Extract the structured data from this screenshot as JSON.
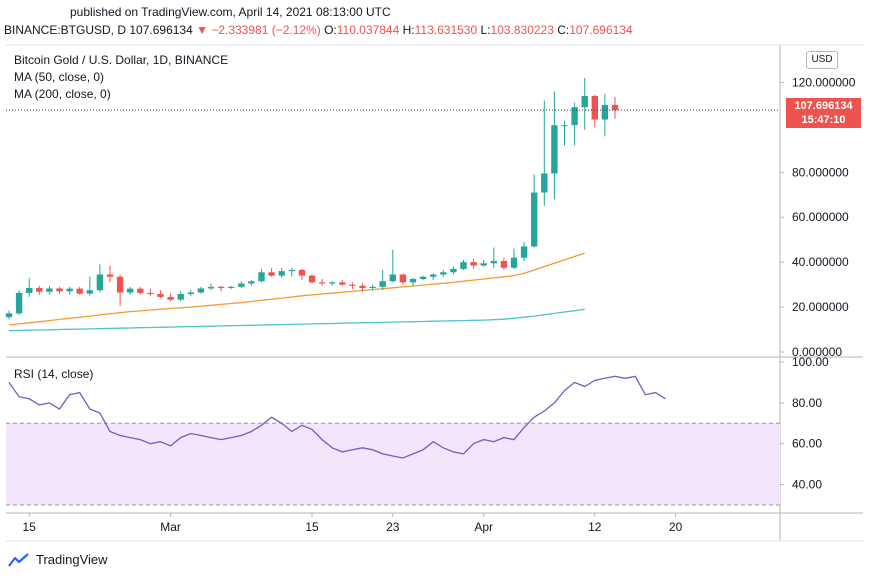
{
  "header": {
    "published": "published on TradingView.com, April 14, 2021 08:13:00 UTC",
    "symbol": "BINANCE:BTGUSD, D",
    "last": "107.696134",
    "change": "▼ −2.333981 (−2.12%)",
    "o_label": "O:",
    "o": "110.037844",
    "h_label": "H:",
    "h": "113.631530",
    "l_label": "L:",
    "l": "103.830223",
    "c_label": "C:",
    "c": "107.696134"
  },
  "legend": {
    "title": "Bitcoin Gold / U.S. Dollar, 1D, BINANCE",
    "ma50": "MA (50, close, 0)",
    "ma200": "MA (200, close, 0)",
    "rsi": "RSI (14, close)"
  },
  "currency": "USD",
  "price_tag": {
    "price": "107.696134",
    "countdown": "15:47:10"
  },
  "logo_text": "TradingView",
  "colors": {
    "up": "#26a69a",
    "down": "#ef5350",
    "ma50": "#f39c34",
    "ma200": "#4fc3cf",
    "rsi": "#7e57c2",
    "rsi_band": "#f3e5fc"
  },
  "chart_data": [
    {
      "type": "candlestick",
      "ylim": [
        0,
        130
      ],
      "yticks": [
        "0.000000",
        "20.000000",
        "40.000000",
        "60.000000",
        "80.000000",
        "120.000000"
      ],
      "ytick_values": [
        0,
        20,
        40,
        60,
        80,
        120
      ],
      "xticks": [
        {
          "label": "15",
          "index": 2
        },
        {
          "label": "Mar",
          "index": 16
        },
        {
          "label": "15",
          "index": 30
        },
        {
          "label": "23",
          "index": 38
        },
        {
          "label": "Apr",
          "index": 47
        },
        {
          "label": "12",
          "index": 58
        },
        {
          "label": "20",
          "index": 66
        }
      ],
      "candles": [
        {
          "o": 15.5,
          "h": 18.5,
          "l": 14.5,
          "c": 17.2
        },
        {
          "o": 17.2,
          "h": 27.5,
          "l": 16.5,
          "c": 26.3
        },
        {
          "o": 26.3,
          "h": 33.0,
          "l": 24.5,
          "c": 28.5
        },
        {
          "o": 28.5,
          "h": 29.5,
          "l": 25.5,
          "c": 26.8
        },
        {
          "o": 26.8,
          "h": 29.5,
          "l": 25.5,
          "c": 28.3
        },
        {
          "o": 28.3,
          "h": 29.0,
          "l": 26.0,
          "c": 27.0
        },
        {
          "o": 27.0,
          "h": 29.0,
          "l": 25.5,
          "c": 28.2
        },
        {
          "o": 28.2,
          "h": 29.0,
          "l": 25.5,
          "c": 26.0
        },
        {
          "o": 26.0,
          "h": 33.5,
          "l": 25.0,
          "c": 27.5
        },
        {
          "o": 27.5,
          "h": 39.0,
          "l": 26.5,
          "c": 34.5
        },
        {
          "o": 34.5,
          "h": 38.5,
          "l": 31.0,
          "c": 33.5
        },
        {
          "o": 33.5,
          "h": 34.5,
          "l": 20.5,
          "c": 26.5
        },
        {
          "o": 26.5,
          "h": 29.0,
          "l": 25.5,
          "c": 28.2
        },
        {
          "o": 28.2,
          "h": 29.0,
          "l": 25.5,
          "c": 26.3
        },
        {
          "o": 26.3,
          "h": 28.0,
          "l": 25.0,
          "c": 25.8
        },
        {
          "o": 25.8,
          "h": 27.5,
          "l": 24.0,
          "c": 24.5
        },
        {
          "o": 24.5,
          "h": 26.0,
          "l": 22.5,
          "c": 23.3
        },
        {
          "o": 23.3,
          "h": 27.0,
          "l": 22.5,
          "c": 25.8
        },
        {
          "o": 25.8,
          "h": 27.5,
          "l": 25.0,
          "c": 26.5
        },
        {
          "o": 26.5,
          "h": 29.0,
          "l": 26.0,
          "c": 28.3
        },
        {
          "o": 28.3,
          "h": 30.5,
          "l": 27.5,
          "c": 29.0
        },
        {
          "o": 29.0,
          "h": 29.5,
          "l": 27.0,
          "c": 28.5
        },
        {
          "o": 28.5,
          "h": 29.5,
          "l": 28.0,
          "c": 29.0
        },
        {
          "o": 29.0,
          "h": 31.5,
          "l": 28.5,
          "c": 30.5
        },
        {
          "o": 30.5,
          "h": 32.0,
          "l": 29.5,
          "c": 31.5
        },
        {
          "o": 31.5,
          "h": 37.0,
          "l": 31.0,
          "c": 35.5
        },
        {
          "o": 35.5,
          "h": 37.5,
          "l": 33.5,
          "c": 34.0
        },
        {
          "o": 34.0,
          "h": 37.5,
          "l": 33.0,
          "c": 36.0
        },
        {
          "o": 36.0,
          "h": 37.5,
          "l": 33.5,
          "c": 36.5
        },
        {
          "o": 36.5,
          "h": 37.0,
          "l": 32.0,
          "c": 34.0
        },
        {
          "o": 34.0,
          "h": 34.5,
          "l": 30.5,
          "c": 31.0
        },
        {
          "o": 31.0,
          "h": 32.5,
          "l": 29.5,
          "c": 30.5
        },
        {
          "o": 30.5,
          "h": 31.5,
          "l": 29.5,
          "c": 31.0
        },
        {
          "o": 31.0,
          "h": 32.0,
          "l": 29.5,
          "c": 30.0
        },
        {
          "o": 30.0,
          "h": 31.0,
          "l": 28.0,
          "c": 29.5
        },
        {
          "o": 29.5,
          "h": 30.5,
          "l": 27.0,
          "c": 28.5
        },
        {
          "o": 28.5,
          "h": 30.0,
          "l": 27.5,
          "c": 29.0
        },
        {
          "o": 29.0,
          "h": 36.5,
          "l": 27.5,
          "c": 31.5
        },
        {
          "o": 31.5,
          "h": 45.5,
          "l": 31.0,
          "c": 34.5
        },
        {
          "o": 34.5,
          "h": 35.0,
          "l": 30.0,
          "c": 31.0
        },
        {
          "o": 31.0,
          "h": 33.0,
          "l": 29.5,
          "c": 32.5
        },
        {
          "o": 32.5,
          "h": 34.0,
          "l": 32.0,
          "c": 33.5
        },
        {
          "o": 33.5,
          "h": 35.0,
          "l": 32.0,
          "c": 34.5
        },
        {
          "o": 34.5,
          "h": 36.5,
          "l": 33.5,
          "c": 35.5
        },
        {
          "o": 35.5,
          "h": 38.0,
          "l": 34.5,
          "c": 37.0
        },
        {
          "o": 37.0,
          "h": 41.0,
          "l": 36.5,
          "c": 40.0
        },
        {
          "o": 40.0,
          "h": 41.5,
          "l": 37.0,
          "c": 38.5
        },
        {
          "o": 38.5,
          "h": 41.0,
          "l": 38.0,
          "c": 39.5
        },
        {
          "o": 39.5,
          "h": 46.5,
          "l": 37.5,
          "c": 40.5
        },
        {
          "o": 40.5,
          "h": 42.0,
          "l": 36.5,
          "c": 37.5
        },
        {
          "o": 37.5,
          "h": 46.0,
          "l": 37.0,
          "c": 42.0
        },
        {
          "o": 42.0,
          "h": 49.0,
          "l": 40.5,
          "c": 47.0
        },
        {
          "o": 47.0,
          "h": 79.0,
          "l": 46.5,
          "c": 71.0
        },
        {
          "o": 71.0,
          "h": 112.0,
          "l": 65.0,
          "c": 79.5
        },
        {
          "o": 79.5,
          "h": 116.0,
          "l": 68.0,
          "c": 101.0
        },
        {
          "o": 101.0,
          "h": 103.0,
          "l": 92.0,
          "c": 101.0
        },
        {
          "o": 101.0,
          "h": 111.0,
          "l": 92.0,
          "c": 109.0
        },
        {
          "o": 109.0,
          "h": 122.0,
          "l": 99.0,
          "c": 114.0
        },
        {
          "o": 114.0,
          "h": 114.5,
          "l": 100.0,
          "c": 103.5
        },
        {
          "o": 103.5,
          "h": 115.0,
          "l": 96.0,
          "c": 110.0
        },
        {
          "o": 110.0,
          "h": 113.6,
          "l": 103.8,
          "c": 107.7
        }
      ],
      "ma50": [
        12,
        12.5,
        13,
        13.5,
        14,
        14.5,
        15,
        15.5,
        16,
        16.5,
        17,
        17.5,
        18,
        18.3,
        18.7,
        19,
        19.4,
        19.7,
        20,
        20.4,
        20.8,
        21.2,
        21.6,
        22,
        22.5,
        23,
        23.5,
        24,
        24.5,
        25,
        25.4,
        25.8,
        26.2,
        26.6,
        27,
        27.4,
        27.8,
        28.2,
        28.6,
        29,
        29.4,
        29.8,
        30.2,
        30.6,
        31,
        31.5,
        32,
        32.5,
        33,
        33.5,
        34,
        35,
        36.5,
        38,
        39.5,
        41,
        42.5,
        44
      ],
      "ma200": [
        9.5,
        9.6,
        9.7,
        9.8,
        9.9,
        10,
        10.1,
        10.2,
        10.3,
        10.4,
        10.5,
        10.6,
        10.7,
        10.8,
        10.9,
        11,
        11.1,
        11.2,
        11.3,
        11.4,
        11.5,
        11.6,
        11.7,
        11.8,
        11.9,
        12,
        12.1,
        12.2,
        12.3,
        12.4,
        12.5,
        12.6,
        12.7,
        12.8,
        12.9,
        13,
        13.1,
        13.2,
        13.3,
        13.4,
        13.5,
        13.6,
        13.7,
        13.8,
        13.9,
        14,
        14.1,
        14.2,
        14.4,
        14.6,
        15,
        15.5,
        16,
        16.6,
        17.2,
        17.8,
        18.4,
        19
      ]
    },
    {
      "type": "line",
      "title": "RSI (14, close)",
      "ylim": [
        30,
        100
      ],
      "yticks": [
        "40.00",
        "60.00",
        "80.00",
        "100.00"
      ],
      "ytick_values": [
        40,
        60,
        80,
        100
      ],
      "band": [
        30,
        70
      ],
      "values": [
        90,
        83,
        82,
        79,
        80,
        77,
        84,
        85,
        77,
        75,
        66,
        64,
        63,
        62,
        60,
        61,
        59,
        63,
        65,
        64,
        63,
        62,
        63,
        64,
        66,
        69,
        73,
        70,
        66,
        69,
        67,
        62,
        58,
        56,
        57,
        58,
        57,
        55,
        54,
        53,
        55,
        57,
        61,
        58,
        56,
        55,
        60,
        62,
        61,
        63,
        62,
        68,
        73,
        76,
        80,
        86,
        90,
        88,
        91,
        92,
        93,
        92,
        93,
        84,
        85,
        82
      ]
    }
  ]
}
